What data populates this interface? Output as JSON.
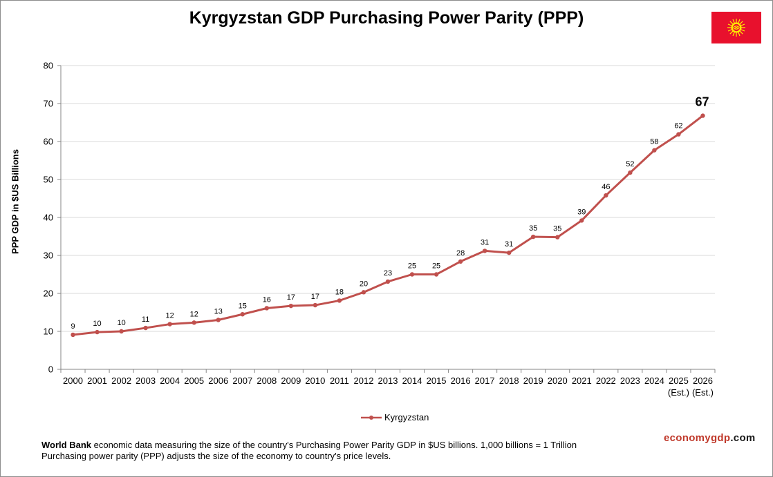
{
  "chart_data": {
    "type": "line",
    "title": "Kyrgyzstan GDP Purchasing Power Parity (PPP)",
    "ylabel": "PPP GDP in $US Billions",
    "xlabel": "",
    "ylim": [
      0,
      80
    ],
    "yticks": [
      0,
      10,
      20,
      30,
      40,
      50,
      60,
      70,
      80
    ],
    "grid": true,
    "legend_position": "bottom",
    "categories": [
      "2000",
      "2001",
      "2002",
      "2003",
      "2004",
      "2005",
      "2006",
      "2007",
      "2008",
      "2009",
      "2010",
      "2011",
      "2012",
      "2013",
      "2014",
      "2015",
      "2016",
      "2017",
      "2018",
      "2019",
      "2020",
      "2021",
      "2022",
      "2023",
      "2024",
      "2025",
      "2026"
    ],
    "category_sublabels": [
      "",
      "",
      "",
      "",
      "",
      "",
      "",
      "",
      "",
      "",
      "",
      "",
      "",
      "",
      "",
      "",
      "",
      "",
      "",
      "",
      "",
      "",
      "",
      "",
      "",
      "(Est.)",
      "(Est.)"
    ],
    "series": [
      {
        "name": "Kyrgyzstan",
        "color": "#c0504d",
        "values": [
          9.1,
          9.8,
          10.0,
          10.9,
          11.9,
          12.3,
          13.0,
          14.5,
          16.1,
          16.7,
          16.9,
          18.1,
          20.3,
          23.1,
          25.0,
          25.0,
          28.4,
          31.2,
          30.7,
          34.9,
          34.8,
          39.2,
          45.8,
          51.8,
          57.7,
          61.9,
          66.8
        ],
        "labels": [
          "9",
          "10",
          "10",
          "11",
          "12",
          "12",
          "13",
          "15",
          "16",
          "17",
          "17",
          "18",
          "20",
          "23",
          "25",
          "25",
          "28",
          "31",
          "31",
          "35",
          "35",
          "39",
          "46",
          "52",
          "58",
          "62",
          "67"
        ]
      }
    ]
  },
  "footnote": {
    "source": "World Bank",
    "line1_rest": " economic data measuring the size of the country's Purchasing Power Parity GDP in $US billions. 1,000 billions = 1 Trillion",
    "line2": "Purchasing power parity (PPP) adjusts the size of the economy to country's price levels."
  },
  "brand": {
    "part1": "economygdp",
    "part2": ".com",
    "color": "#c0392b"
  },
  "flag": {
    "icon": "kyrgyzstan-flag-icon",
    "color": "#e8112d",
    "emblem_color": "#ffef00"
  }
}
